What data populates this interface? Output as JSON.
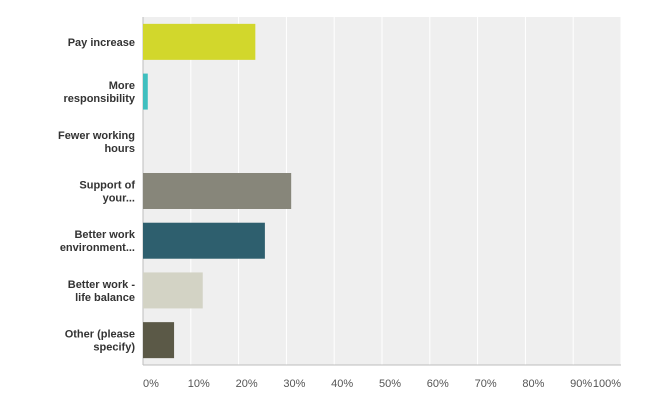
{
  "chart_data": {
    "type": "bar",
    "orientation": "horizontal",
    "categories": [
      [
        "Pay increase"
      ],
      [
        "More",
        "responsibility"
      ],
      [
        "Fewer working",
        "hours"
      ],
      [
        "Support of",
        "your..."
      ],
      [
        "Better work",
        "environment..."
      ],
      [
        "Better work -",
        "life balance"
      ],
      [
        "Other (please",
        "specify)"
      ]
    ],
    "values": [
      23.5,
      1,
      0,
      31,
      25.5,
      12.5,
      6.5
    ],
    "colors": [
      "#d2d72c",
      "#3fbfbf",
      "#c8c8c8",
      "#87867a",
      "#2e5f6e",
      "#d3d3c5",
      "#5b5947"
    ],
    "xlim": [
      0,
      100
    ],
    "xticks": [
      "0%",
      "10%",
      "20%",
      "30%",
      "40%",
      "50%",
      "60%",
      "70%",
      "80%",
      "90%",
      "100%"
    ],
    "grid": true,
    "legend": "none"
  }
}
